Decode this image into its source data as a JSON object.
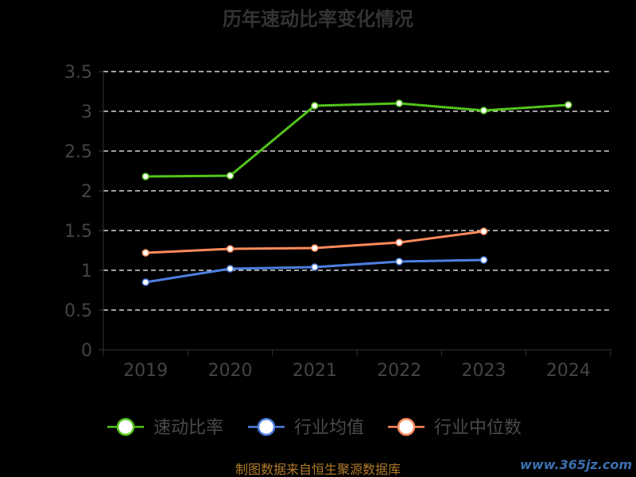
{
  "chart_data": {
    "type": "line",
    "title": "历年速动比率变化情况",
    "x": [
      "2019",
      "2020",
      "2021",
      "2022",
      "2023",
      "2024"
    ],
    "ylim": [
      0,
      3.5
    ],
    "yticks": [
      "0",
      "0.5",
      "1",
      "1.5",
      "2",
      "2.5",
      "3",
      "3.5"
    ],
    "grid": true,
    "legend_position": "bottom",
    "series": [
      {
        "name": "速动比率",
        "color": "#52c41a",
        "values": [
          2.18,
          2.19,
          3.07,
          3.1,
          3.01,
          3.08
        ]
      },
      {
        "name": "行业均值",
        "color": "#4e7fe0",
        "values": [
          0.85,
          1.02,
          1.04,
          1.11,
          1.13,
          null
        ]
      },
      {
        "name": "行业中位数",
        "color": "#ff8a5c",
        "values": [
          1.22,
          1.27,
          1.28,
          1.35,
          1.49,
          null
        ]
      }
    ]
  },
  "footer": {
    "source": "制图数据来自恒生聚源数据库",
    "watermark": "www.365jz.com"
  }
}
